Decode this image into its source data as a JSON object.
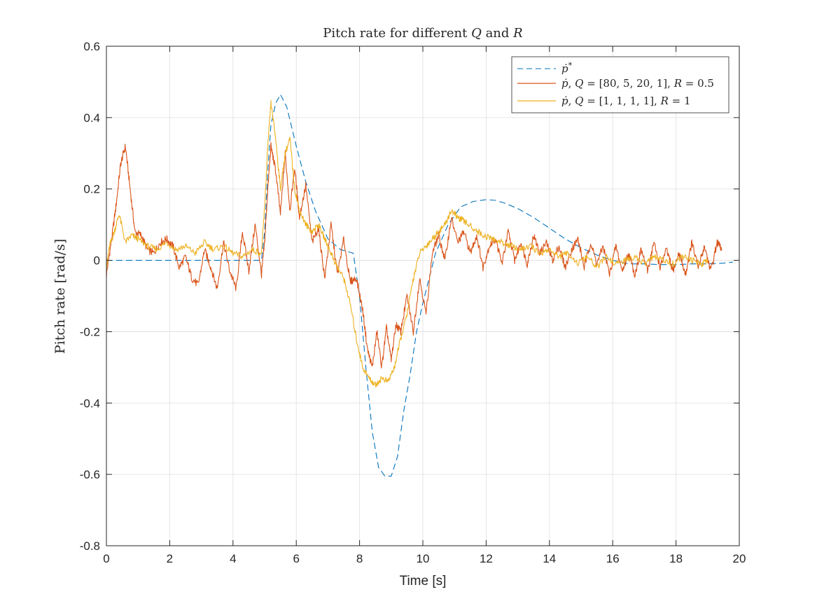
{
  "chart_data": {
    "type": "line",
    "title": "Pitch rate for different Q and R",
    "xlabel": "Time [s]",
    "ylabel": "Pitch rate [rad/s]",
    "xlim": [
      0,
      20
    ],
    "ylim": [
      -0.8,
      0.6
    ],
    "xticks": [
      0,
      2,
      4,
      6,
      8,
      10,
      12,
      14,
      16,
      18,
      20
    ],
    "yticks": [
      -0.8,
      -0.6,
      -0.4,
      -0.2,
      0,
      0.2,
      0.4,
      0.6
    ],
    "xtick_labels": [
      "0",
      "2",
      "4",
      "6",
      "8",
      "10",
      "12",
      "14",
      "16",
      "18",
      "20"
    ],
    "ytick_labels": [
      "-0.8",
      "-0.6",
      "-0.4",
      "-0.2",
      "0",
      "0.2",
      "0.4",
      "0.6"
    ],
    "grid": true,
    "legend_position": "top-right",
    "series": [
      {
        "name": "ṗ*",
        "color": "#0072BD",
        "style": "dashed",
        "x": [
          0,
          0.5,
          1,
          2,
          3,
          4,
          4.9,
          5.0,
          5.1,
          5.2,
          5.35,
          5.5,
          5.7,
          6.0,
          6.3,
          6.6,
          7.0,
          7.4,
          7.8,
          8.0,
          8.2,
          8.4,
          8.6,
          8.8,
          9.0,
          9.2,
          9.4,
          9.6,
          9.8,
          10.0,
          10.4,
          10.8,
          11.2,
          11.6,
          12.0,
          12.3,
          12.6,
          13.0,
          13.5,
          14.0,
          14.5,
          15.0,
          15.5,
          16.0,
          16.5,
          17.0,
          17.5,
          18.0,
          18.5,
          19.0,
          19.5,
          19.8
        ],
        "y": [
          0,
          0,
          0,
          0,
          0,
          0,
          0,
          0.08,
          0.25,
          0.38,
          0.44,
          0.465,
          0.43,
          0.32,
          0.22,
          0.14,
          0.06,
          0.03,
          0.02,
          -0.1,
          -0.3,
          -0.48,
          -0.58,
          -0.605,
          -0.605,
          -0.55,
          -0.42,
          -0.32,
          -0.2,
          -0.12,
          0.02,
          0.1,
          0.15,
          0.165,
          0.17,
          0.168,
          0.16,
          0.145,
          0.12,
          0.09,
          0.06,
          0.035,
          0.015,
          0.0,
          -0.01,
          -0.01,
          -0.012,
          -0.012,
          -0.01,
          -0.01,
          -0.008,
          -0.005
        ]
      },
      {
        "name": "ṗ, Q = [80, 5, 20, 1], R = 0.5",
        "color": "#D95319",
        "style": "solid",
        "x": [
          0,
          0.15,
          0.3,
          0.45,
          0.6,
          0.75,
          0.9,
          1.1,
          1.3,
          1.5,
          1.7,
          1.9,
          2.1,
          2.3,
          2.5,
          2.7,
          2.9,
          3.1,
          3.3,
          3.5,
          3.7,
          3.9,
          4.1,
          4.3,
          4.5,
          4.7,
          4.9,
          5.0,
          5.1,
          5.2,
          5.35,
          5.5,
          5.65,
          5.8,
          5.95,
          6.1,
          6.3,
          6.5,
          6.7,
          6.9,
          7.1,
          7.3,
          7.5,
          7.7,
          7.9,
          8.1,
          8.25,
          8.4,
          8.55,
          8.7,
          8.85,
          9.0,
          9.15,
          9.3,
          9.5,
          9.7,
          9.9,
          10.1,
          10.3,
          10.5,
          10.7,
          10.9,
          11.1,
          11.3,
          11.5,
          11.7,
          11.9,
          12.1,
          12.3,
          12.5,
          12.7,
          12.9,
          13.1,
          13.3,
          13.5,
          13.7,
          13.9,
          14.1,
          14.3,
          14.5,
          14.7,
          14.9,
          15.1,
          15.3,
          15.5,
          15.7,
          15.9,
          16.1,
          16.3,
          16.5,
          16.7,
          16.9,
          17.1,
          17.3,
          17.5,
          17.7,
          17.9,
          18.1,
          18.3,
          18.5,
          18.7,
          18.9,
          19.1,
          19.3,
          19.45
        ],
        "y": [
          -0.04,
          0.05,
          0.15,
          0.27,
          0.32,
          0.2,
          0.08,
          0.07,
          0.03,
          0.02,
          0.05,
          0.06,
          0.04,
          -0.02,
          0.01,
          -0.05,
          -0.07,
          0.03,
          -0.02,
          -0.08,
          0.05,
          -0.03,
          -0.08,
          0.08,
          -0.03,
          0.1,
          -0.04,
          0.05,
          0.2,
          0.32,
          0.25,
          0.13,
          0.3,
          0.14,
          0.26,
          0.12,
          0.21,
          0.05,
          0.09,
          -0.05,
          0.1,
          -0.04,
          0.06,
          -0.06,
          -0.05,
          -0.14,
          -0.25,
          -0.3,
          -0.2,
          -0.3,
          -0.19,
          -0.28,
          -0.18,
          -0.2,
          -0.1,
          -0.2,
          -0.05,
          -0.15,
          0.02,
          0.07,
          0.0,
          0.12,
          0.05,
          0.08,
          0.02,
          0.07,
          -0.02,
          0.04,
          0.06,
          -0.01,
          0.08,
          0.0,
          0.05,
          -0.01,
          0.07,
          0.02,
          0.05,
          0.0,
          0.04,
          -0.02,
          0.03,
          0.06,
          -0.02,
          0.05,
          -0.01,
          0.04,
          -0.04,
          0.04,
          -0.03,
          0.02,
          -0.04,
          0.03,
          -0.03,
          0.05,
          -0.02,
          0.03,
          -0.03,
          0.02,
          -0.04,
          0.05,
          -0.02,
          0.04,
          -0.03,
          0.05,
          0.03
        ]
      },
      {
        "name": "ṗ, Q = [1, 1, 1, 1], R = 1",
        "color": "#EDB120",
        "style": "solid",
        "x": [
          0,
          0.1,
          0.25,
          0.4,
          0.6,
          0.8,
          1.0,
          1.3,
          1.6,
          1.9,
          2.2,
          2.5,
          2.8,
          3.1,
          3.4,
          3.7,
          4.0,
          4.3,
          4.6,
          4.9,
          5.0,
          5.1,
          5.2,
          5.35,
          5.5,
          5.65,
          5.8,
          5.95,
          6.1,
          6.3,
          6.5,
          6.7,
          6.9,
          7.1,
          7.3,
          7.5,
          7.7,
          7.9,
          8.1,
          8.3,
          8.5,
          8.7,
          8.9,
          9.1,
          9.3,
          9.5,
          9.7,
          9.9,
          10.1,
          10.3,
          10.5,
          10.7,
          10.9,
          11.1,
          11.3,
          11.6,
          11.9,
          12.2,
          12.5,
          12.8,
          13.1,
          13.4,
          13.7,
          14.0,
          14.3,
          14.6,
          14.9,
          15.2,
          15.5,
          15.8,
          16.1,
          16.4,
          16.7,
          17.0,
          17.3,
          17.6,
          17.9,
          18.2,
          18.5,
          18.8,
          19.0
        ],
        "y": [
          -0.02,
          0.04,
          0.08,
          0.13,
          0.05,
          0.07,
          0.06,
          0.04,
          0.03,
          0.05,
          0.03,
          0.04,
          0.02,
          0.05,
          0.03,
          0.04,
          0.02,
          0.01,
          0.03,
          0.02,
          0.15,
          0.32,
          0.44,
          0.34,
          0.2,
          0.3,
          0.34,
          0.2,
          0.14,
          0.1,
          0.08,
          0.1,
          0.06,
          0.02,
          -0.02,
          -0.05,
          -0.12,
          -0.22,
          -0.3,
          -0.33,
          -0.35,
          -0.33,
          -0.34,
          -0.3,
          -0.22,
          -0.15,
          -0.05,
          0.02,
          0.04,
          0.06,
          0.08,
          0.1,
          0.14,
          0.12,
          0.11,
          0.09,
          0.07,
          0.06,
          0.05,
          0.04,
          0.03,
          0.04,
          0.02,
          0.03,
          0.01,
          0.02,
          -0.01,
          0.01,
          -0.02,
          0.01,
          -0.01,
          0.0,
          0.01,
          -0.01,
          0.01,
          0.0,
          -0.01,
          0.01,
          0.0,
          -0.01,
          0.0
        ]
      }
    ]
  }
}
